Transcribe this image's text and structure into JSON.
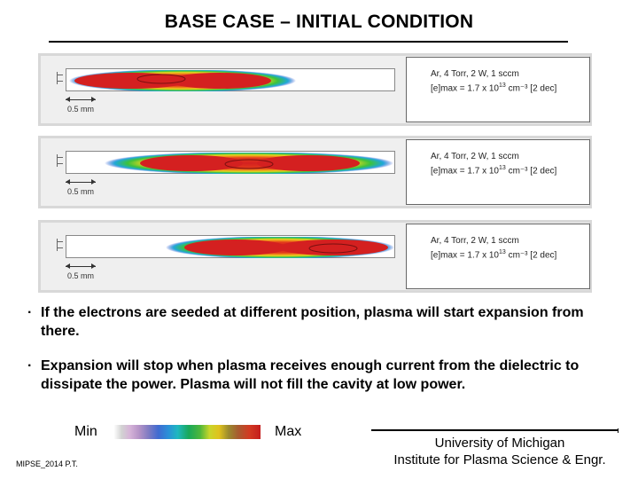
{
  "header": {
    "title": "BASE CASE – INITIAL CONDITION"
  },
  "panels": [
    {
      "scale_label": "0.5 mm",
      "info_line1": "Ar, 4 Torr, 2 W, 1 sccm",
      "info_line2_prefix": "[e]max = 1.7 x 10",
      "info_line2_exp": "13",
      "info_line2_suffix": " cm⁻³ [2 dec]",
      "seed_position": "left"
    },
    {
      "scale_label": "0.5 mm",
      "info_line1": "Ar, 4 Torr, 2 W, 1 sccm",
      "info_line2_prefix": "[e]max = 1.7 x 10",
      "info_line2_exp": "13",
      "info_line2_suffix": " cm⁻³ [2 dec]",
      "seed_position": "center"
    },
    {
      "scale_label": "0.5 mm",
      "info_line1": "Ar, 4 Torr, 2 W, 1 sccm",
      "info_line2_prefix": "[e]max = 1.7 x 10",
      "info_line2_exp": "13",
      "info_line2_suffix": " cm⁻³ [2 dec]",
      "seed_position": "right"
    }
  ],
  "bullets": [
    {
      "symbol": "·",
      "text": "If the electrons are seeded at different position, plasma will start expansion from there."
    },
    {
      "symbol": "·",
      "text": "Expansion will stop when plasma receives enough current from the dielectric to dissipate the power.  Plasma will not fill the cavity at low power."
    }
  ],
  "legend": {
    "min_label": "Min",
    "max_label": "Max"
  },
  "footer": {
    "left_text": "MIPSE_2014 P.T.",
    "univ_line1": "University of Michigan",
    "univ_line2": "Institute for Plasma Science & Engr."
  },
  "colors": {
    "plasma_core": "#d42020",
    "plasma_outer": "#1a3fd0"
  }
}
